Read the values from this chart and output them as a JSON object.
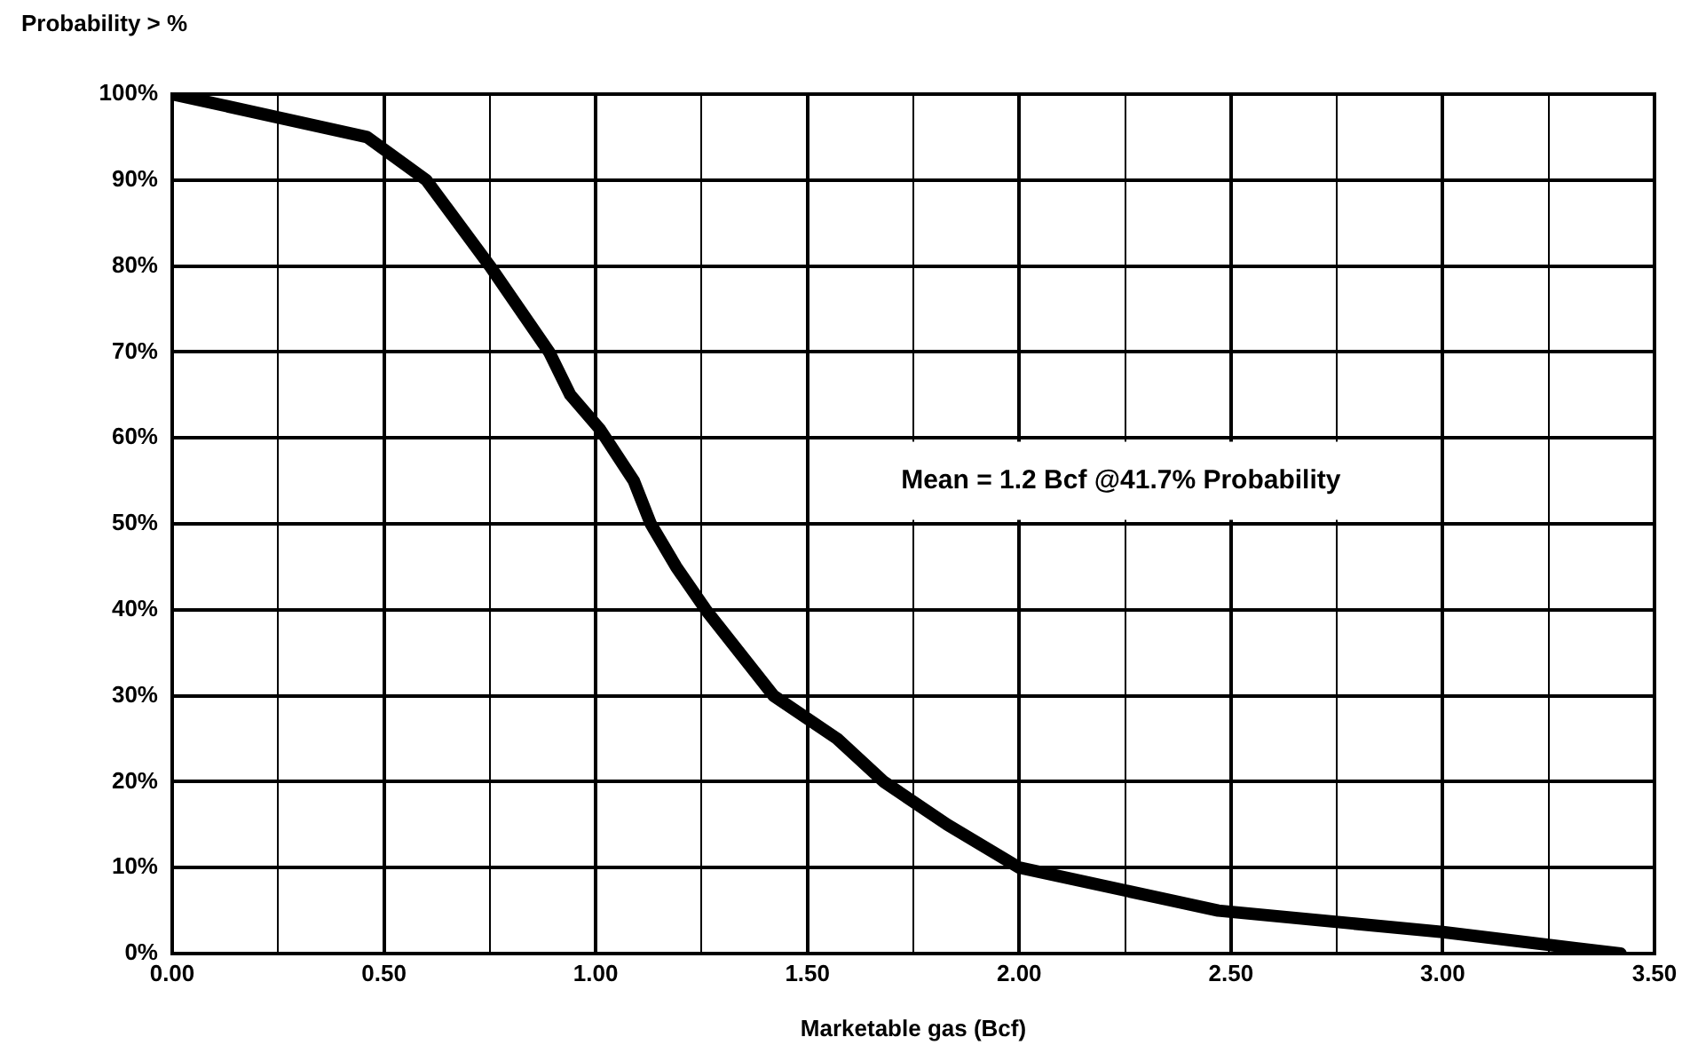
{
  "chart_data": {
    "type": "line",
    "ylabel": "Probability > %",
    "xlabel": "Marketable gas (Bcf)",
    "x": [
      0,
      0.46,
      0.6,
      0.75,
      0.82,
      0.89,
      0.94,
      1.01,
      1.09,
      1.13,
      1.19,
      1.26,
      1.42,
      1.57,
      1.68,
      1.83,
      2.0,
      2.47,
      3.0,
      3.42
    ],
    "series": [
      {
        "color": "#000000",
        "values": [
          100,
          95,
          90,
          80,
          75,
          70,
          65,
          61,
          55,
          50,
          45,
          40,
          30,
          25,
          20,
          15,
          10,
          5,
          2.5,
          0
        ]
      }
    ],
    "xlim": [
      0,
      3.5
    ],
    "xticks": [
      {
        "value": 0,
        "label": "0.00"
      },
      {
        "value": 0.25,
        "label": null
      },
      {
        "value": 0.5,
        "label": "0.50"
      },
      {
        "value": 0.75,
        "label": null
      },
      {
        "value": 1,
        "label": "1.00"
      },
      {
        "value": 1.25,
        "label": null
      },
      {
        "value": 1.5,
        "label": "1.50"
      },
      {
        "value": 1.75,
        "label": null
      },
      {
        "value": 2,
        "label": "2.00"
      },
      {
        "value": 2.25,
        "label": null
      },
      {
        "value": 2.5,
        "label": "2.50"
      },
      {
        "value": 2.75,
        "label": null
      },
      {
        "value": 3,
        "label": "3.00"
      },
      {
        "value": 3.25,
        "label": null
      },
      {
        "value": 3.5,
        "label": "3.50"
      }
    ],
    "ylim": [
      0,
      100
    ],
    "yticks": [
      {
        "value": 0,
        "label": "0%"
      },
      {
        "value": 10,
        "label": "10%"
      },
      {
        "value": 20,
        "label": "20%"
      },
      {
        "value": 30,
        "label": "30%"
      },
      {
        "value": 40,
        "label": "40%"
      },
      {
        "value": 50,
        "label": "50%"
      },
      {
        "value": 60,
        "label": "60%"
      },
      {
        "value": 70,
        "label": "70%"
      },
      {
        "value": 80,
        "label": "80%"
      },
      {
        "value": 90,
        "label": "90%"
      },
      {
        "value": 100,
        "label": "100%"
      }
    ],
    "grid": true,
    "legend": false,
    "marker": "none",
    "line_style": "solid",
    "annotations": [
      "Mean = 1.2 Bcf @41.7% Probability"
    ]
  }
}
